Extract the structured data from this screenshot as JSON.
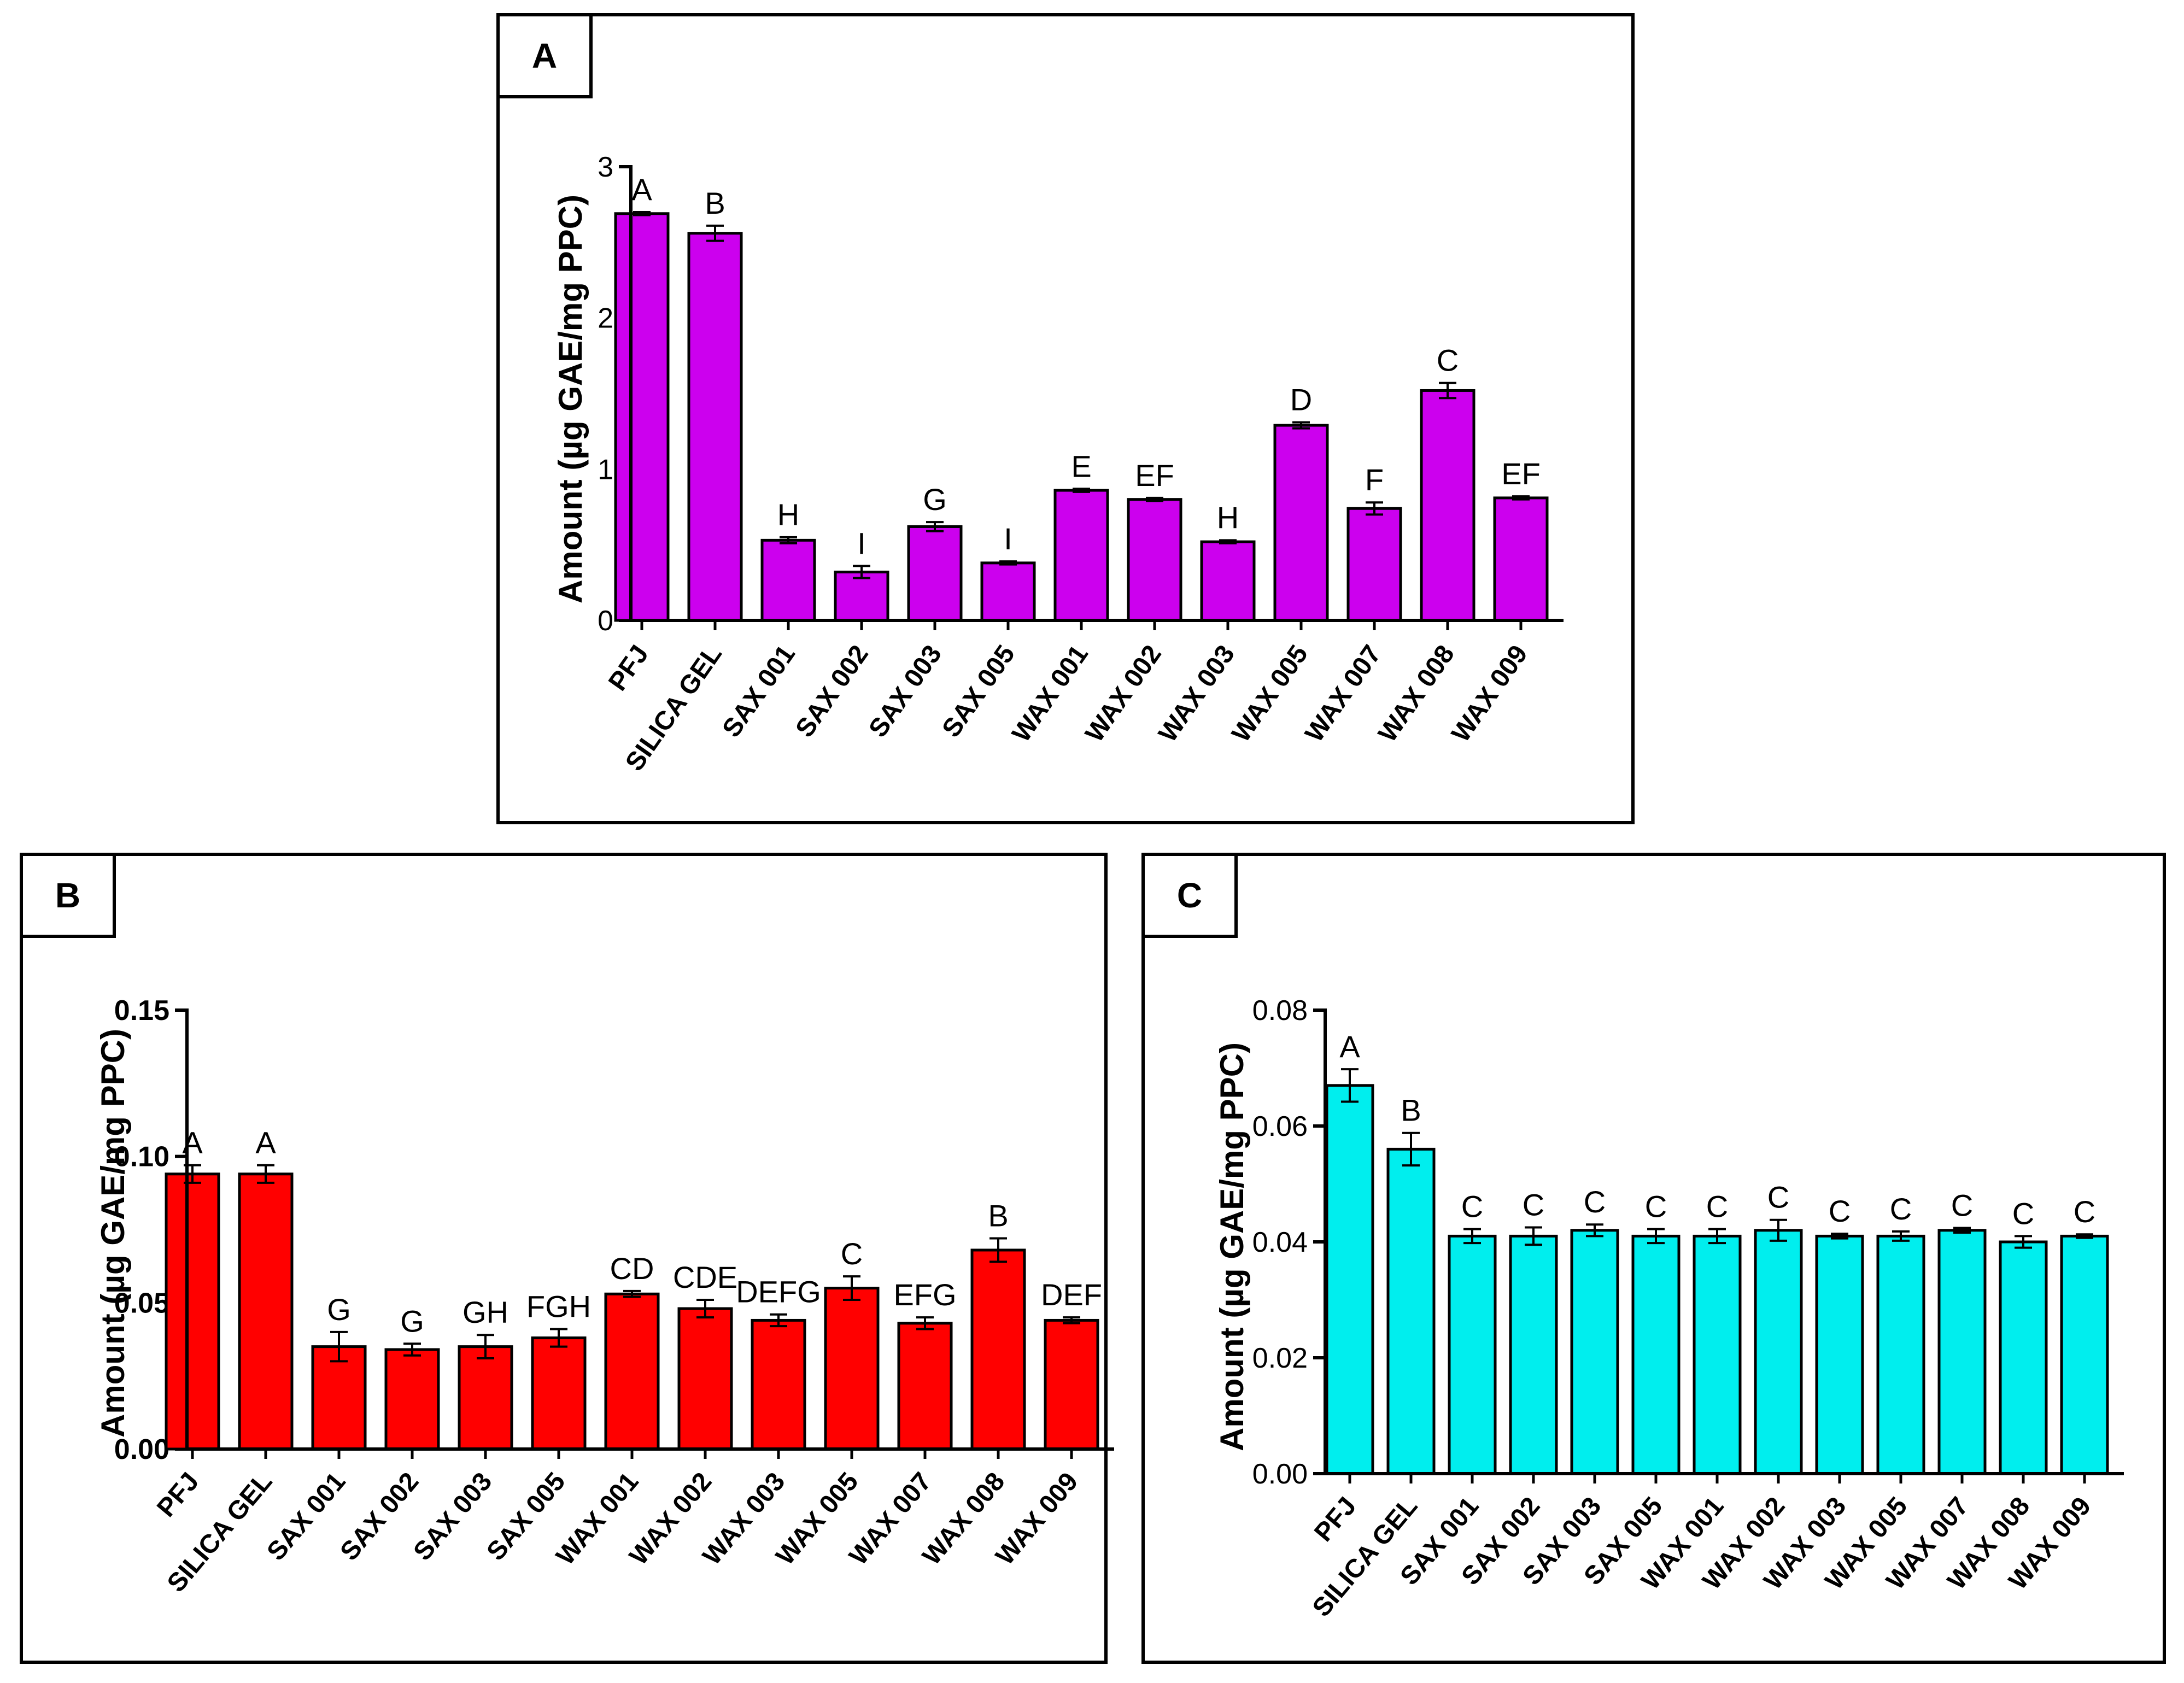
{
  "chart_data": [
    {
      "panel_label": "A",
      "type": "bar",
      "ylabel": "Amount (µg GAE/mg PPC)",
      "ylim": [
        0,
        3
      ],
      "yticks": [
        "0",
        "1",
        "2",
        "3"
      ],
      "bar_color": "#cc00ee",
      "categories": [
        "PFJ",
        "SILICA GEL",
        "SAX 001",
        "SAX 002",
        "SAX 003",
        "SAX 005",
        "WAX 001",
        "WAX 002",
        "WAX 003",
        "WAX 005",
        "WAX 007",
        "WAX 008",
        "WAX 009"
      ],
      "values": [
        2.69,
        2.56,
        0.53,
        0.32,
        0.62,
        0.38,
        0.86,
        0.8,
        0.52,
        1.29,
        0.74,
        1.52,
        0.81
      ],
      "errors": [
        0.01,
        0.05,
        0.02,
        0.04,
        0.03,
        0.01,
        0.01,
        0.01,
        0.01,
        0.02,
        0.04,
        0.05,
        0.01
      ],
      "letters": [
        "A",
        "B",
        "H",
        "I",
        "G",
        "I",
        "E",
        "EF",
        "H",
        "D",
        "F",
        "C",
        "EF"
      ]
    },
    {
      "panel_label": "B",
      "type": "bar",
      "ylabel": "Amount (µg GAE/mg PPC)",
      "ylim": [
        0,
        0.15
      ],
      "yticks": [
        "0.00",
        "0.05",
        "0.10",
        "0.15"
      ],
      "bar_color": "#ff0000",
      "categories": [
        "PFJ",
        "SILICA GEL",
        "SAX 001",
        "SAX 002",
        "SAX 003",
        "SAX 005",
        "WAX 001",
        "WAX 002",
        "WAX 003",
        "WAX 005",
        "WAX 007",
        "WAX 008",
        "WAX 009"
      ],
      "values": [
        0.094,
        0.094,
        0.035,
        0.034,
        0.035,
        0.038,
        0.053,
        0.048,
        0.044,
        0.055,
        0.043,
        0.068,
        0.044
      ],
      "errors": [
        0.003,
        0.003,
        0.005,
        0.002,
        0.004,
        0.003,
        0.001,
        0.003,
        0.002,
        0.004,
        0.002,
        0.004,
        0.001
      ],
      "letters": [
        "A",
        "A",
        "G",
        "G",
        "GH",
        "FGH",
        "CD",
        "CDE",
        "DEFG",
        "C",
        "EFG",
        "B",
        "DEF"
      ]
    },
    {
      "panel_label": "C",
      "type": "bar",
      "ylabel": "Amount (µg GAE/mg PPC)",
      "ylim": [
        0,
        0.08
      ],
      "yticks": [
        "0.00",
        "0.02",
        "0.04",
        "0.06",
        "0.08"
      ],
      "bar_color": "#00eeee",
      "categories": [
        "PFJ",
        "SILICA GEL",
        "SAX 001",
        "SAX 002",
        "SAX 003",
        "SAX 005",
        "WAX 001",
        "WAX 002",
        "WAX 003",
        "WAX 005",
        "WAX 007",
        "WAX 008",
        "WAX 009"
      ],
      "values": [
        0.067,
        0.056,
        0.041,
        0.041,
        0.042,
        0.041,
        0.041,
        0.042,
        0.041,
        0.041,
        0.042,
        0.04,
        0.041
      ],
      "errors": [
        0.0028,
        0.0028,
        0.0012,
        0.0015,
        0.001,
        0.0012,
        0.0012,
        0.0018,
        0.0004,
        0.0008,
        0.0004,
        0.001,
        0.0003
      ],
      "letters": [
        "A",
        "B",
        "C",
        "C",
        "C",
        "C",
        "C",
        "C",
        "C",
        "C",
        "C",
        "C",
        "C"
      ]
    }
  ]
}
